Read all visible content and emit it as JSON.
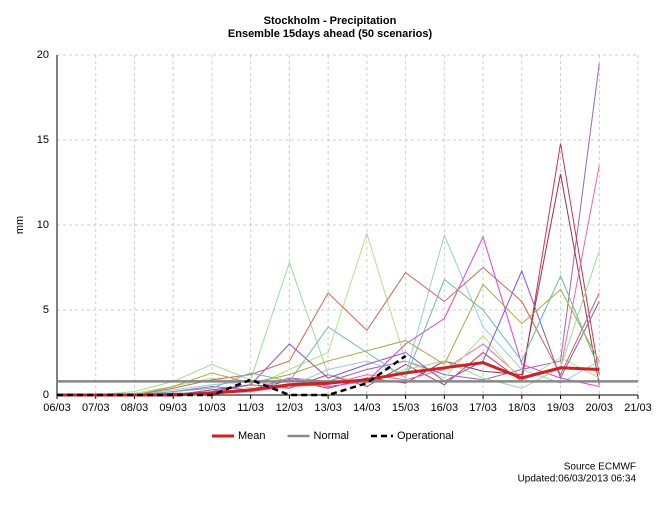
{
  "chart_data": {
    "type": "line",
    "title": "Stockholm - Precipitation",
    "subtitle": "Ensemble 15days ahead (50 scenarios)",
    "y_label": "mm",
    "categories": [
      "06/03",
      "07/03",
      "08/03",
      "09/03",
      "10/03",
      "11/03",
      "12/03",
      "13/03",
      "14/03",
      "15/03",
      "16/03",
      "17/03",
      "18/03",
      "19/03",
      "20/03",
      "21/03"
    ],
    "ylim": [
      0,
      20
    ],
    "yticks": [
      0,
      5,
      10,
      15,
      20
    ],
    "grid": true,
    "series": [
      {
        "name": "Mean",
        "color": "#cc2222",
        "width": 3,
        "dash": false,
        "values": [
          0,
          0,
          0,
          0,
          0.1,
          0.3,
          0.6,
          0.7,
          0.9,
          1.3,
          1.6,
          1.9,
          1.0,
          1.6,
          1.5,
          null
        ]
      },
      {
        "name": "Normal",
        "color": "#888888",
        "width": 2.5,
        "dash": false,
        "values": [
          0.8,
          0.8,
          0.8,
          0.8,
          0.8,
          0.8,
          0.8,
          0.8,
          0.8,
          0.8,
          0.8,
          0.8,
          0.8,
          0.8,
          0.8,
          0.8
        ]
      },
      {
        "name": "Operational",
        "color": "#000000",
        "width": 2.5,
        "dash": true,
        "values": [
          0,
          0,
          0,
          0,
          0,
          0.9,
          0,
          0,
          0.7,
          2.3,
          null,
          null,
          null,
          null,
          null,
          null
        ]
      }
    ],
    "ensemble": [
      {
        "color": "#9966bb",
        "values": [
          0,
          0,
          0,
          0.2,
          0.5,
          0.3,
          1.0,
          0.8,
          1.5,
          2.0,
          1.2,
          0.9,
          1.5,
          2.0,
          19.5,
          null
        ]
      },
      {
        "color": "#cc3355",
        "values": [
          0,
          0,
          0,
          0,
          0.2,
          0.6,
          0.4,
          1.2,
          0.5,
          1.8,
          0.6,
          2.5,
          0.8,
          14.8,
          1.2,
          null
        ]
      },
      {
        "color": "#993344",
        "values": [
          0,
          0,
          0,
          0.1,
          0.1,
          0.2,
          0.9,
          0.4,
          1.0,
          0.7,
          2.0,
          1.4,
          1.2,
          13.0,
          0.6,
          null
        ]
      },
      {
        "color": "#ee66aa",
        "values": [
          0,
          0,
          0,
          0,
          0.3,
          0.2,
          0.5,
          0.6,
          1.2,
          0.9,
          1.5,
          3.0,
          1.0,
          1.5,
          13.5,
          null
        ]
      },
      {
        "color": "#bbdd88",
        "values": [
          0,
          0,
          0.1,
          0.5,
          1.0,
          0.4,
          1.5,
          2.5,
          9.5,
          2.0,
          1.0,
          3.5,
          0.8,
          2.2,
          1.0,
          null
        ]
      },
      {
        "color": "#99ccdd",
        "values": [
          0,
          0,
          0,
          0.3,
          0.6,
          0.8,
          0.5,
          1.5,
          2.0,
          1.2,
          9.4,
          4.0,
          1.5,
          0.7,
          2.0,
          null
        ]
      },
      {
        "color": "#dd44dd",
        "values": [
          0,
          0,
          0,
          0,
          0.2,
          0.3,
          1.0,
          0.5,
          0.8,
          3.0,
          4.5,
          9.3,
          1.8,
          1.0,
          0.5,
          null
        ]
      },
      {
        "color": "#99dd99",
        "values": [
          0,
          0,
          0.2,
          0.8,
          1.8,
          0.9,
          7.8,
          1.2,
          0.7,
          1.5,
          2.0,
          1.0,
          0.4,
          1.6,
          8.5,
          null
        ]
      },
      {
        "color": "#cc6655",
        "values": [
          0,
          0,
          0,
          0.4,
          0.9,
          1.2,
          2.0,
          6.0,
          3.8,
          7.2,
          5.5,
          7.5,
          5.5,
          1.2,
          6.0,
          null
        ]
      },
      {
        "color": "#8855cc",
        "values": [
          0,
          0,
          0,
          0,
          0.3,
          0.6,
          3.0,
          1.0,
          1.8,
          2.5,
          0.8,
          2.0,
          7.3,
          1.0,
          5.5,
          null
        ]
      },
      {
        "color": "#66bbaa",
        "values": [
          0,
          0,
          0,
          0.2,
          0.4,
          1.3,
          0.8,
          4.0,
          2.5,
          1.0,
          6.8,
          5.0,
          2.0,
          7.0,
          1.5,
          null
        ]
      },
      {
        "color": "#aaaa44",
        "values": [
          0,
          0,
          0,
          0.5,
          1.3,
          0.7,
          1.2,
          2.0,
          2.6,
          3.2,
          1.8,
          6.5,
          4.2,
          6.2,
          2.0,
          null
        ]
      }
    ],
    "legend_position": "bottom",
    "source": "Source ECMWF",
    "updated": "Updated:06/03/2013 06:34"
  }
}
